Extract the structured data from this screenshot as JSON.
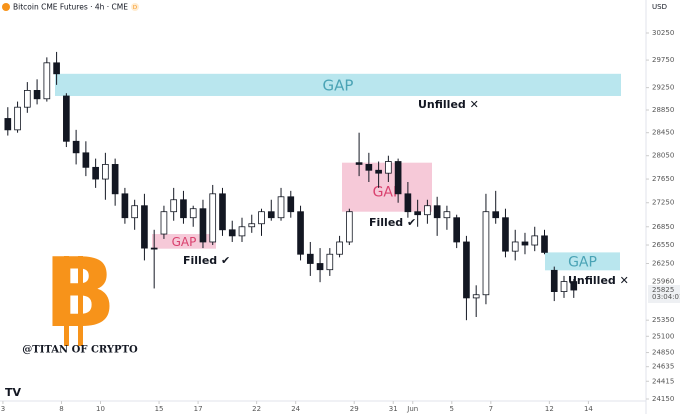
{
  "chart_data": {
    "type": "candlestick",
    "title": "Bitcoin CME Futures · 4h · CME",
    "badge": "D",
    "currency": "USD",
    "watermark": "@TITAN OF CRYPTO",
    "log_scale": true,
    "up_color": "#ffffff",
    "down_color": "#131722",
    "wick_color": "#131722",
    "ylim": [
      24150,
      30250
    ],
    "yticks": [
      30250,
      29750,
      29250,
      28850,
      28450,
      28050,
      27650,
      27250,
      26850,
      26550,
      26250,
      25350,
      25100,
      24850,
      24635,
      24415,
      24150
    ],
    "xlim": [
      -0.15,
      32.9
    ],
    "xticks": [
      {
        "value": 0,
        "label": "3"
      },
      {
        "value": 3,
        "label": "8"
      },
      {
        "value": 5,
        "label": "10"
      },
      {
        "value": 8,
        "label": "15"
      },
      {
        "value": 10,
        "label": "17"
      },
      {
        "value": 13,
        "label": "22"
      },
      {
        "value": 15,
        "label": "24"
      },
      {
        "value": 18,
        "label": "29"
      },
      {
        "value": 20,
        "label": "31"
      },
      {
        "value": 21,
        "label": "Jun"
      },
      {
        "value": 23,
        "label": "5"
      },
      {
        "value": 25,
        "label": "7"
      },
      {
        "value": 28,
        "label": "12"
      },
      {
        "value": 30,
        "label": "14"
      }
    ],
    "price_labels": [
      25960,
      25825
    ],
    "countdown": "03:04:01",
    "series": [
      {
        "open": [
          28700,
          28500,
          28900,
          29200,
          29050,
          29700,
          29100,
          28300,
          28100,
          27850,
          27650,
          27900,
          27400,
          27000,
          27200,
          26500,
          26730,
          27100,
          27300,
          27000,
          27150,
          26600,
          27400,
          26800,
          26700,
          26850,
          26900,
          27100,
          27000,
          27350,
          27100,
          26400,
          26250,
          26150,
          26400,
          26600,
          27930,
          27900,
          27800,
          27750,
          27950,
          27400,
          27100,
          27050,
          27200,
          27000,
          27000,
          26600,
          25700,
          25750,
          27100,
          27000,
          26450,
          26600,
          26550,
          26700,
          26140,
          25800,
          25960
        ],
        "high": [
          28900,
          29000,
          29350,
          29400,
          29800,
          29900,
          29150,
          28500,
          28300,
          28000,
          28100,
          28000,
          27500,
          27300,
          27400,
          26800,
          27200,
          27500,
          27450,
          27200,
          27300,
          27550,
          27500,
          26950,
          27000,
          27050,
          27150,
          27300,
          27500,
          27450,
          27200,
          26600,
          26500,
          26500,
          26700,
          27150,
          28450,
          28100,
          27950,
          28050,
          28000,
          27600,
          27300,
          27300,
          27350,
          27200,
          27050,
          26700,
          25900,
          27400,
          27450,
          27150,
          26800,
          26750,
          26850,
          26800,
          26200,
          26050,
          26000
        ],
        "low": [
          28400,
          28450,
          28800,
          28950,
          29000,
          29300,
          28200,
          27900,
          27700,
          27500,
          27300,
          27200,
          26900,
          26800,
          26300,
          25850,
          26650,
          26950,
          26900,
          26850,
          26500,
          26550,
          26700,
          26600,
          26600,
          26750,
          26700,
          26950,
          26950,
          27000,
          26300,
          26050,
          25950,
          26050,
          26350,
          26550,
          27700,
          27600,
          27500,
          27600,
          27250,
          27000,
          26850,
          26900,
          26700,
          26800,
          26500,
          25350,
          25400,
          25600,
          26900,
          26350,
          26300,
          26400,
          26450,
          26400,
          25650,
          25700,
          25700
        ],
        "close": [
          28500,
          28900,
          29200,
          29050,
          29700,
          29500,
          28300,
          28100,
          27850,
          27650,
          27900,
          27400,
          27000,
          27200,
          26500,
          26490,
          27100,
          27300,
          27000,
          27150,
          26600,
          27400,
          26800,
          26700,
          26850,
          26900,
          27100,
          27000,
          27350,
          27100,
          26400,
          26250,
          26150,
          26400,
          26600,
          27100,
          27900,
          27800,
          27750,
          27950,
          27400,
          27100,
          27050,
          27200,
          27000,
          27100,
          26600,
          25700,
          25750,
          27100,
          27000,
          26450,
          26600,
          26550,
          26700,
          26430,
          25800,
          25960,
          25825
        ]
      }
    ],
    "gaps": [
      {
        "label": "GAP",
        "top": 29500,
        "bottom": 29100,
        "fill": "#b9e6ee",
        "text_color": "#4aa3b5",
        "note": "Unfilled ✕"
      },
      {
        "label": "GAP",
        "top": 26730,
        "bottom": 26490,
        "fill": "#f6c9d8",
        "text_color": "#d9416e",
        "note": "Filled ✔"
      },
      {
        "label": "GAP",
        "top": 27930,
        "bottom": 27100,
        "fill": "#f6c9d8",
        "text_color": "#d9416e",
        "note": "Filled ✔"
      },
      {
        "label": "GAP",
        "top": 26430,
        "bottom": 26140,
        "fill": "#b9e6ee",
        "text_color": "#4aa3b5",
        "note": "Unfilled ✕"
      }
    ]
  }
}
